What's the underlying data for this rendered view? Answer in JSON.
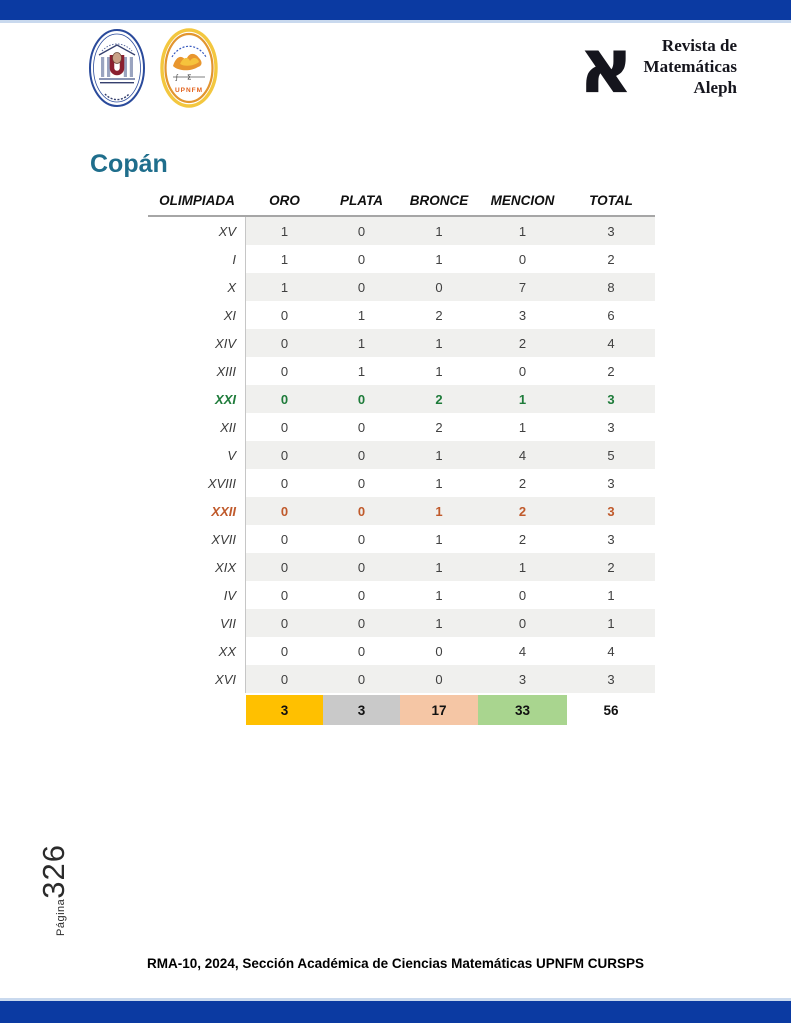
{
  "page": {
    "title": "Copán",
    "accent_color": "#1f6e8c",
    "bar_color": "#0b3aa2"
  },
  "header": {
    "brand": {
      "aleph_glyph": "א",
      "line1": "Revista de",
      "line2": "Matemáticas",
      "line3": "Aleph"
    },
    "logos": {
      "upnfm_label": "UPNFM"
    }
  },
  "table": {
    "columns": [
      "OLIMPIADA",
      "ORO",
      "PLATA",
      "BRONCE",
      "MENCION",
      "TOTAL"
    ],
    "rows": [
      {
        "olimpiada": "XV",
        "oro": "1",
        "plata": "0",
        "bronce": "1",
        "mencion": "1",
        "total": "3"
      },
      {
        "olimpiada": "I",
        "oro": "1",
        "plata": "0",
        "bronce": "1",
        "mencion": "0",
        "total": "2"
      },
      {
        "olimpiada": "X",
        "oro": "1",
        "plata": "0",
        "bronce": "0",
        "mencion": "7",
        "total": "8"
      },
      {
        "olimpiada": "XI",
        "oro": "0",
        "plata": "1",
        "bronce": "2",
        "mencion": "3",
        "total": "6"
      },
      {
        "olimpiada": "XIV",
        "oro": "0",
        "plata": "1",
        "bronce": "1",
        "mencion": "2",
        "total": "4"
      },
      {
        "olimpiada": "XIII",
        "oro": "0",
        "plata": "1",
        "bronce": "1",
        "mencion": "0",
        "total": "2"
      },
      {
        "olimpiada": "XXI",
        "oro": "0",
        "plata": "0",
        "bronce": "2",
        "mencion": "1",
        "total": "3",
        "highlight": "green"
      },
      {
        "olimpiada": "XII",
        "oro": "0",
        "plata": "0",
        "bronce": "2",
        "mencion": "1",
        "total": "3"
      },
      {
        "olimpiada": "V",
        "oro": "0",
        "plata": "0",
        "bronce": "1",
        "mencion": "4",
        "total": "5"
      },
      {
        "olimpiada": "XVIII",
        "oro": "0",
        "plata": "0",
        "bronce": "1",
        "mencion": "2",
        "total": "3"
      },
      {
        "olimpiada": "XXII",
        "oro": "0",
        "plata": "0",
        "bronce": "1",
        "mencion": "2",
        "total": "3",
        "highlight": "orange"
      },
      {
        "olimpiada": "XVII",
        "oro": "0",
        "plata": "0",
        "bronce": "1",
        "mencion": "2",
        "total": "3"
      },
      {
        "olimpiada": "XIX",
        "oro": "0",
        "plata": "0",
        "bronce": "1",
        "mencion": "1",
        "total": "2"
      },
      {
        "olimpiada": "IV",
        "oro": "0",
        "plata": "0",
        "bronce": "1",
        "mencion": "0",
        "total": "1"
      },
      {
        "olimpiada": "VII",
        "oro": "0",
        "plata": "0",
        "bronce": "1",
        "mencion": "0",
        "total": "1"
      },
      {
        "olimpiada": "XX",
        "oro": "0",
        "plata": "0",
        "bronce": "0",
        "mencion": "4",
        "total": "4"
      },
      {
        "olimpiada": "XVI",
        "oro": "0",
        "plata": "0",
        "bronce": "0",
        "mencion": "3",
        "total": "3"
      }
    ],
    "totals": {
      "oro": "3",
      "plata": "3",
      "bronce": "17",
      "mencion": "33",
      "total": "56"
    },
    "totals_colors": {
      "oro": "#FFC000",
      "plata": "#C9C9C9",
      "bronce": "#F5C6A5",
      "mencion": "#A9D58F",
      "total": "#FFFFFF"
    },
    "highlight_colors": {
      "green": "#1e7b3a",
      "orange": "#c05a2b"
    }
  },
  "sidebar": {
    "page_label": "Página",
    "page_number": "326"
  },
  "footer": {
    "text": "RMA-10, 2024, Sección Académica de Ciencias Matemáticas UPNFM CURSPS"
  }
}
